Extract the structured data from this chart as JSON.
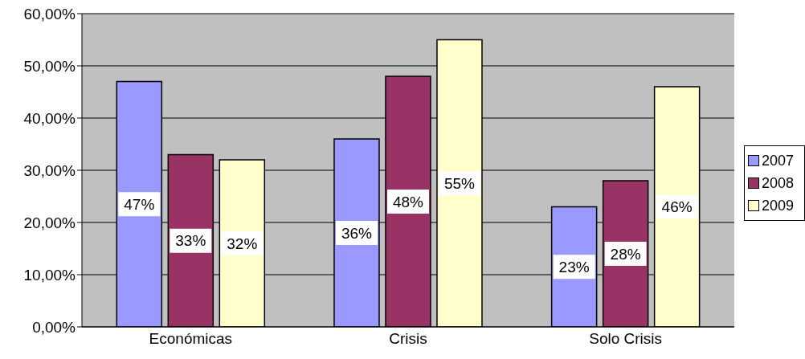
{
  "chart_data": {
    "type": "bar",
    "categories": [
      "Económicas",
      "Crisis",
      "Solo Crisis"
    ],
    "series": [
      {
        "name": "2007",
        "color": "#9999ff",
        "values": [
          47,
          36,
          23
        ],
        "value_labels": [
          "47%",
          "36%",
          "23%"
        ]
      },
      {
        "name": "2008",
        "color": "#993366",
        "values": [
          33,
          48,
          28
        ],
        "value_labels": [
          "33%",
          "48%",
          "28%"
        ]
      },
      {
        "name": "2009",
        "color": "#ffffcc",
        "values": [
          32,
          55,
          46
        ],
        "value_labels": [
          "32%",
          "55%",
          "46%"
        ]
      }
    ],
    "ylim": [
      0,
      60
    ],
    "yticks": [
      {
        "value": 0,
        "label": "0,00%"
      },
      {
        "value": 10,
        "label": "10,00%"
      },
      {
        "value": 20,
        "label": "20,00%"
      },
      {
        "value": 30,
        "label": "30,00%"
      },
      {
        "value": 40,
        "label": "40,00%"
      },
      {
        "value": 50,
        "label": "50,00%"
      },
      {
        "value": 60,
        "label": "60,00%"
      }
    ],
    "grid": "y",
    "legend": "right"
  }
}
